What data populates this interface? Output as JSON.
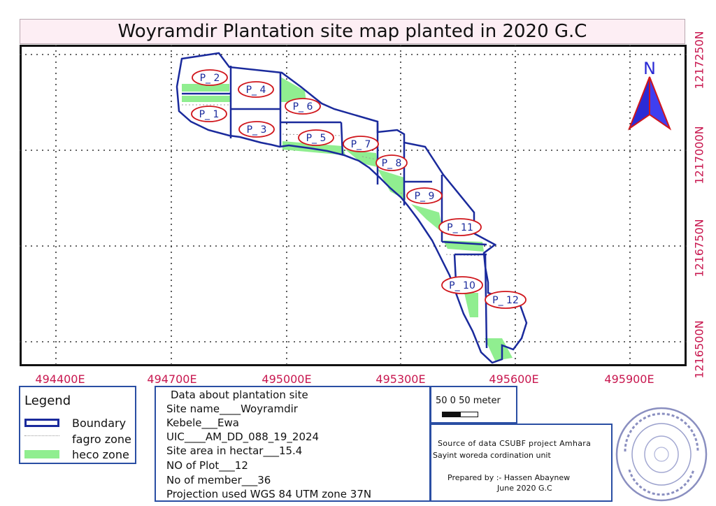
{
  "title": "Woyramdir Plantation site map planted in 2020 G.C",
  "grid": {
    "x_labels": [
      "494400E",
      "494700E",
      "495000E",
      "495300E",
      "495600E",
      "495900E"
    ],
    "y_labels": [
      "1217250N",
      "1217000N",
      "1216750N",
      "1216500N"
    ]
  },
  "north_arrow": {
    "label": "N"
  },
  "plots": [
    {
      "label": "P_ 1"
    },
    {
      "label": "P_ 2"
    },
    {
      "label": "P_ 3"
    },
    {
      "label": "P_ 4"
    },
    {
      "label": "P_ 5"
    },
    {
      "label": "P_ 6"
    },
    {
      "label": "P_ 7"
    },
    {
      "label": "P_ 8"
    },
    {
      "label": "P_ 9"
    },
    {
      "label": "P_ 10"
    },
    {
      "label": "P_ 11"
    },
    {
      "label": "P_ 12"
    }
  ],
  "legend": {
    "title": "Legend",
    "items": [
      {
        "label": "Boundary",
        "color": "#1a2a9c"
      },
      {
        "label": "fagro zone",
        "color": "#bdbdbd"
      },
      {
        "label": "heco zone",
        "color": "#90ee90"
      }
    ]
  },
  "info": {
    "heading": "Data about plantation site",
    "lines": [
      "Site name____Woyramdir",
      "Kebele___Ewa",
      "UIC____AM_DD_088_19_2024",
      "Site area in hectar___15.4",
      "NO of Plot___12",
      "No of member___36",
      "Projection used      WGS 84 UTM zone 37N"
    ]
  },
  "scale": {
    "label": "50   0    50 meter"
  },
  "source": {
    "line1": "Source of data CSUBF project Amhara",
    "line2": "Sayint woreda cordination unit",
    "prepared_by": "Prepared by :- Hassen Abaynew",
    "date": "June 2020 G.C"
  },
  "colors": {
    "boundary": "#1a2a9c",
    "heco_zone": "#90ee90",
    "label_ring": "#d0161c",
    "coord_text": "#c8174f",
    "north_arrow": "#2b2bd6"
  }
}
